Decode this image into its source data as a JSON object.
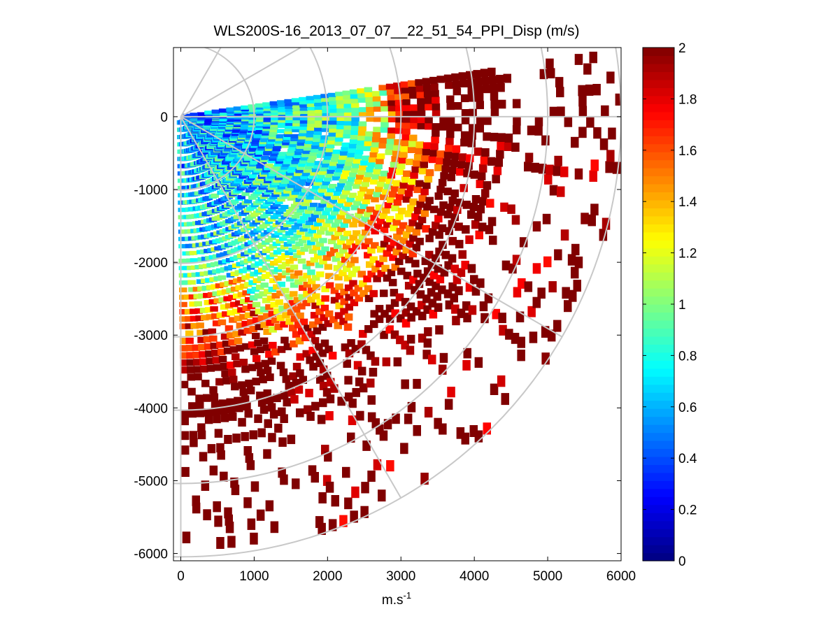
{
  "chart_data": {
    "type": "heatmap",
    "subtype": "ppi-polar-scan",
    "title": "WLS200S-16_2013_07_07__22_51_54_PPI_Disp (m/s)",
    "xlabel_base": "m.s",
    "xlabel_exponent": "-1",
    "ylabel": "",
    "xlim": [
      -100,
      6000
    ],
    "ylim": [
      -6100,
      950
    ],
    "xticks": [
      0,
      1000,
      2000,
      3000,
      4000,
      5000,
      6000
    ],
    "yticks": [
      0,
      -1000,
      -2000,
      -3000,
      -4000,
      -5000,
      -6000
    ],
    "grid": true,
    "polar_grid": {
      "range_rings": [
        1000,
        2000,
        3000,
        4000,
        5000,
        6000
      ],
      "spokes_deg": [
        -90,
        -60,
        -30,
        0,
        30,
        60
      ]
    },
    "sector": {
      "start_angle_deg": -90,
      "end_angle_deg": 8.5,
      "min_range": 30,
      "max_range": 6000,
      "range_gate_m": 100,
      "azimuth_step_deg": 1.5
    },
    "colorbar": {
      "colormap": "jet",
      "min": 0,
      "max": 2,
      "ticks": [
        0,
        0.2,
        0.4,
        0.6,
        0.8,
        1,
        1.2,
        1.4,
        1.6,
        1.8,
        2
      ],
      "tick_labels": [
        "0",
        "0.2",
        "0.4",
        "0.6",
        "0.8",
        "1",
        "1.2",
        "1.4",
        "1.6",
        "1.8",
        "2"
      ]
    },
    "field_description": "Wind speed dispersion (m/s): low values (~0.1-0.9) within ~2500 m of the lidar, increasing with range to saturated values (>=2) beyond ~3500 m; data sparse beyond ~4500 m.",
    "sample_cells": [
      {
        "range_m": 500,
        "azimuth_deg": -5,
        "value": 0.55
      },
      {
        "range_m": 1000,
        "azimuth_deg": -30,
        "value": 0.7
      },
      {
        "range_m": 1500,
        "azimuth_deg": -60,
        "value": 0.75
      },
      {
        "range_m": 2000,
        "azimuth_deg": -20,
        "value": 0.9
      },
      {
        "range_m": 2500,
        "azimuth_deg": -45,
        "value": 1.1
      },
      {
        "range_m": 3000,
        "azimuth_deg": -80,
        "value": 1.3
      },
      {
        "range_m": 3500,
        "azimuth_deg": -30,
        "value": 1.9
      },
      {
        "range_m": 4000,
        "azimuth_deg": 0,
        "value": 2.0
      },
      {
        "range_m": 4500,
        "azimuth_deg": -60,
        "value": 2.0
      },
      {
        "range_m": 5500,
        "azimuth_deg": -15,
        "value": 2.0
      }
    ]
  }
}
